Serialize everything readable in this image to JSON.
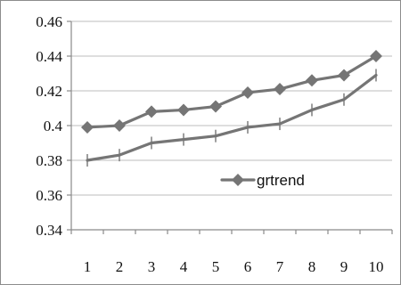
{
  "chart_data": {
    "type": "line",
    "title": "",
    "xlabel": "",
    "ylabel": "",
    "x": [
      "1",
      "2",
      "3",
      "4",
      "5",
      "6",
      "7",
      "8",
      "9",
      "10"
    ],
    "ylim": [
      0.34,
      0.46
    ],
    "yticks": [
      "0.34",
      "0.36",
      "0.38",
      "0.4",
      "0.42",
      "0.44",
      "0.46"
    ],
    "grid": "horizontal",
    "legend_position": "inside-right",
    "series": [
      {
        "name": "grtrend",
        "marker": "diamond",
        "color": "#757575",
        "values": [
          0.399,
          0.4,
          0.408,
          0.409,
          0.411,
          0.419,
          0.421,
          0.426,
          0.429,
          0.44
        ]
      },
      {
        "name": "",
        "marker": "plus",
        "color": "#757575",
        "values": [
          0.38,
          0.383,
          0.39,
          0.392,
          0.394,
          0.399,
          0.401,
          0.409,
          0.415,
          0.429
        ]
      }
    ]
  }
}
